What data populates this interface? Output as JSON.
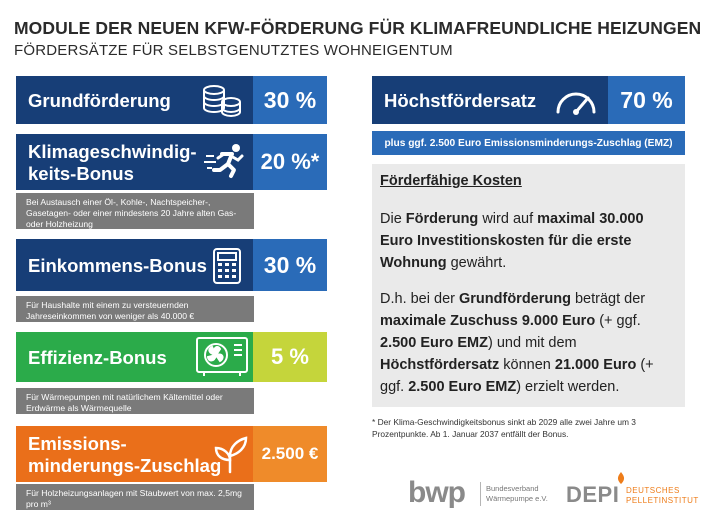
{
  "header": {
    "title": "MODULE DER NEUEN KFW-FÖRDERUNG FÜR KLIMAFREUNDLICHE HEIZUNGEN",
    "subtitle": "FÖRDERSÄTZE FÜR SELBSTGENUTZTES WOHNEIGENTUM"
  },
  "modules": {
    "grund": {
      "label": "Grundförderung",
      "value": "30 %",
      "icon": "coins-icon"
    },
    "klima": {
      "label_line1": "Klimageschwindig-",
      "label_line2": "keits-Bonus",
      "value": "20 %*",
      "icon": "running-person-icon",
      "note": "Bei Austausch einer Öl-, Kohle-, Nachtspeicher-, Gasetagen- oder einer mindestens 20 Jahre alten Gas- oder Holzheizung"
    },
    "einkommen": {
      "label": "Einkommens-Bonus",
      "value": "30 %",
      "icon": "calculator-icon",
      "note": "Für Haushalte mit einem zu versteuernden Jahreseinkommen von weniger als 40.000 €"
    },
    "effizienz": {
      "label": "Effizienz-Bonus",
      "value": "5 %",
      "icon": "heat-pump-icon",
      "note": "Für Wärmepumpen mit natürlichem Kältemittel oder Erdwärme als Wärmequelle"
    },
    "emission": {
      "label_line1": "Emissions-",
      "label_line2": "minderungs-Zuschlag",
      "value": "2.500 €",
      "icon": "sprout-icon",
      "note": "Für Holzheizungsanlagen mit Staubwert von max. 2,5mg pro m³"
    }
  },
  "max_rate": {
    "label": "Höchstfördersatz",
    "value": "70 %",
    "icon": "gauge-icon",
    "emz_note": "plus ggf. 2.500 Euro Emissionsminderungs-Zuschlag (EMZ)"
  },
  "costs": {
    "heading": "Förderfähige Kosten",
    "p1": {
      "t1": "Die ",
      "b1": "Förderung",
      "t2": " wird auf ",
      "b2": "maximal 30.000 Euro Investitionskosten für die erste Wohnung",
      "t3": " gewährt."
    },
    "p2": {
      "t1": "D.h. bei der ",
      "b1": "Grundförderung",
      "t2": " beträgt der ",
      "b2": "maximale Zuschuss 9.000 Euro",
      "t3": " (+ ggf. ",
      "b3": "2.500 Euro EMZ",
      "t4": ") und mit dem ",
      "b4": "Höchstfördersatz",
      "t5": " können ",
      "b5": "21.000 Euro",
      "t6": " (+ ggf. ",
      "b6": "2.500 Euro EMZ",
      "t7": ") erzielt werden."
    }
  },
  "footnote": "* Der Klima-Geschwindigkeitsbonus sinkt ab 2029 alle zwei Jahre um 3 Prozentpunkte. Ab 1. Januar 2037 entfällt der Bonus.",
  "logos": {
    "bwp": {
      "mark": "bwp",
      "line1": "Bundesverband",
      "line2": "Wärmepumpe e.V."
    },
    "depi": {
      "mark": "DEPI",
      "line1": "DEUTSCHES",
      "line2": "PELLETINSTITUT"
    }
  },
  "colors": {
    "navy": "#173e77",
    "blue": "#2a6bb8",
    "green": "#2bab4a",
    "lime": "#c5d53b",
    "orange": "#ea6f1a",
    "note_gray": "#7a7a7a",
    "panel_gray": "#eaeaea"
  }
}
